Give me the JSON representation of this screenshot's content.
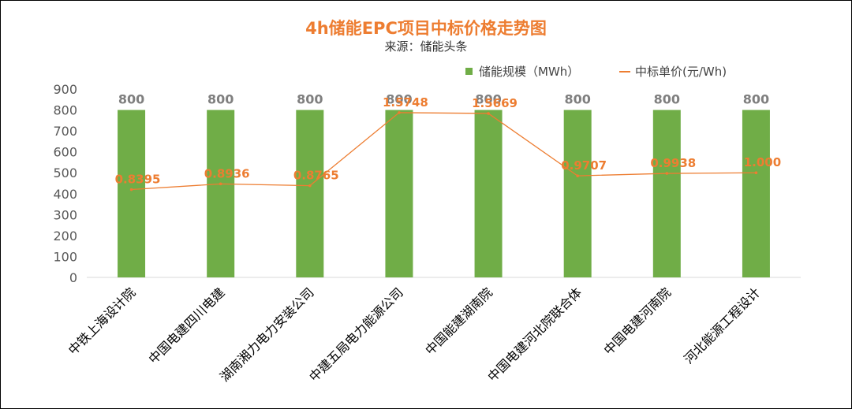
{
  "chart_data": {
    "type": "bar",
    "title": "4h储能EPC项目中标价格走势图",
    "subtitle": "来源：储能头条",
    "categories": [
      "中铁上海设计院",
      "中国电建四川电建",
      "湖南湘力电力安装公司",
      "中建五局电力能源公司",
      "中国能建湖南院",
      "中国电建河北院联合体",
      "中国电建河南院",
      "河北能源工程设计"
    ],
    "series": [
      {
        "name": "储能规模（MWh）",
        "type": "bar",
        "axis": "left",
        "values": [
          800,
          800,
          800,
          800,
          800,
          800,
          800,
          800
        ],
        "labels": [
          "800",
          "800",
          "800",
          "800",
          "800",
          "800",
          "800",
          "800"
        ]
      },
      {
        "name": "中标单价(元/Wh)",
        "type": "line",
        "axis": "secondary",
        "values": [
          0.8395,
          0.8936,
          0.8765,
          1.5748,
          1.5669,
          0.9707,
          0.9938,
          1.0
        ],
        "labels": [
          "0.8395",
          "0.8936",
          "0.8765",
          "1.5748",
          "1.5669",
          "0.9707",
          "0.9938",
          "1.000"
        ]
      }
    ],
    "y_ticks": [
      "0",
      "100",
      "200",
      "300",
      "400",
      "500",
      "600",
      "700",
      "800",
      "900"
    ],
    "ylim": [
      0,
      900
    ],
    "secondary_ylim": [
      0,
      1.8
    ],
    "legend_position": "top-right",
    "grid": false,
    "colors": {
      "bar": "#70AD47",
      "line": "#ED7D31",
      "bar_label": "#7F7F7F",
      "line_label": "#ED7D31"
    }
  }
}
